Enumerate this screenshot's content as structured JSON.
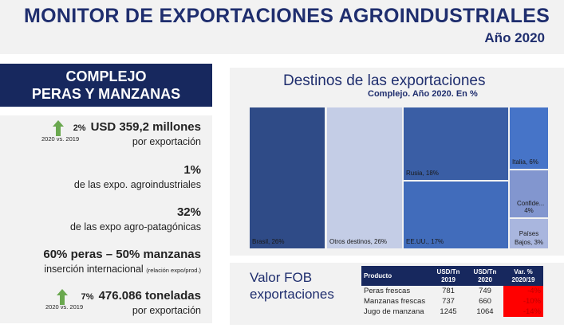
{
  "header": {
    "title": "MONITOR DE EXPORTACIONES AGROINDUSTRIALES",
    "year": "Año 2020"
  },
  "left": {
    "title_line1": "COMPLEJO",
    "title_line2": "PERAS Y MANZANAS",
    "stats": [
      {
        "change": "2%",
        "comparison": "2020 vs. 2019",
        "value": "USD 359,2 millones",
        "desc": "por exportación",
        "trend": "up"
      },
      {
        "value": "1%",
        "desc": "de las expo. agroindustriales"
      },
      {
        "value": "32%",
        "desc": "de las expo agro-patagónicas"
      },
      {
        "value": "60% peras – 50% manzanas",
        "desc": "inserción internacional",
        "note": "(relación expo/prod.)"
      },
      {
        "change": "7%",
        "comparison": "2020 vs. 2019",
        "value": "476.086 toneladas",
        "desc": "por exportación",
        "trend": "up"
      }
    ]
  },
  "chart_data": {
    "type": "treemap",
    "title": "Destinos de las exportaciones",
    "subtitle": "Complejo. Año 2020. En %",
    "items": [
      {
        "label": "Brasil, 26%",
        "name": "Brasil",
        "value": 26,
        "color": "#2f4b87"
      },
      {
        "label": "Otros destinos, 26%",
        "name": "Otros destinos",
        "value": 26,
        "color": "#c4cde6"
      },
      {
        "label": "Rusia, 18%",
        "name": "Rusia",
        "value": 18,
        "color": "#3a5ea5"
      },
      {
        "label": "EE.UU., 17%",
        "name": "EE.UU.",
        "value": 17,
        "color": "#416cbb"
      },
      {
        "label": "Italia, 6%",
        "name": "Italia",
        "value": 6,
        "color": "#4674c8"
      },
      {
        "label": "Confide... 4%",
        "name": "Confide...",
        "value": 4,
        "color": "#8296cf"
      },
      {
        "label": "Países Bajos, 3%",
        "name": "Países Bajos",
        "value": 3,
        "color": "#a9b6de"
      }
    ]
  },
  "fob": {
    "title_line1": "Valor FOB",
    "title_line2": "exportaciones",
    "headers": [
      "Producto",
      "USD/Tn 2019",
      "USD/Tn 2020",
      "Var. % 2020/19"
    ],
    "rows": [
      [
        "Peras frescas",
        "781",
        "749",
        "-4%"
      ],
      [
        "Manzanas frescas",
        "737",
        "660",
        "-10%"
      ],
      [
        "Jugo de manzana",
        "1245",
        "1064",
        "-14%"
      ]
    ]
  },
  "colors": {
    "navy": "#17285e",
    "up_arrow": "#6aa84f",
    "negative": "#ff0000"
  }
}
